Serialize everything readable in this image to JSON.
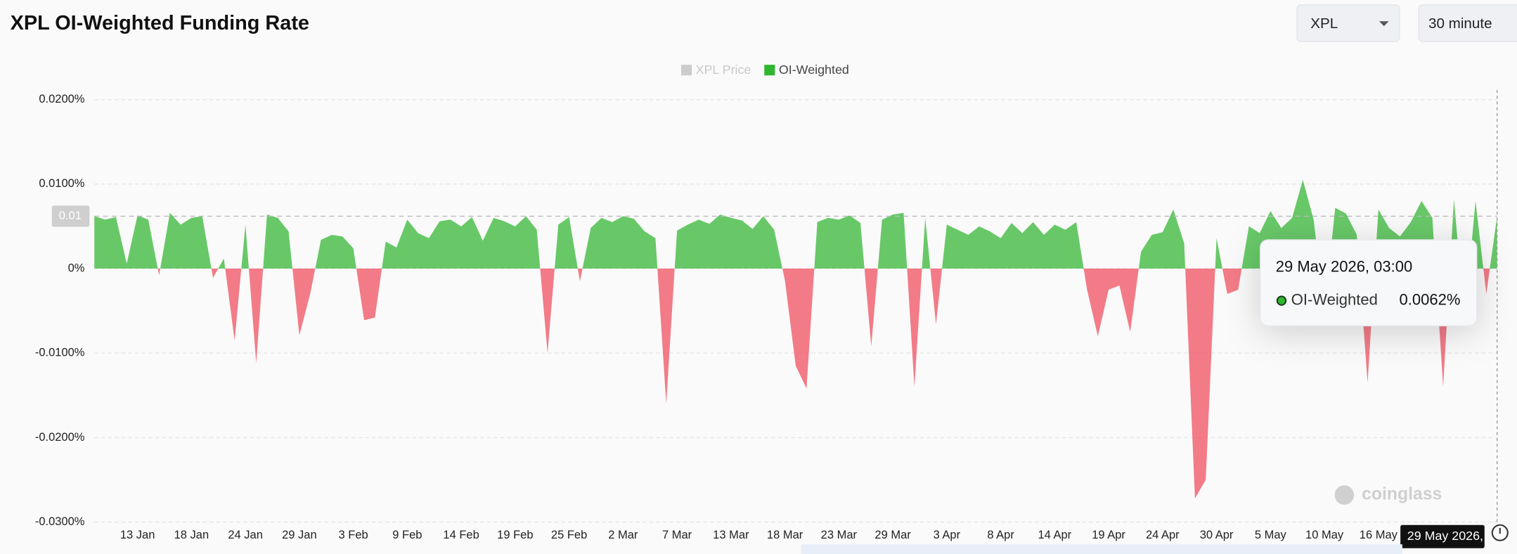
{
  "header": {
    "symbol_select": "XPL",
    "interval_select": "30 minute"
  },
  "watermark": "coinglass",
  "chart_data": {
    "type": "area",
    "title": "XPL OI-Weighted Funding Rate",
    "categories": [
      null,
      null,
      null,
      null,
      "13 Jan",
      null,
      null,
      null,
      null,
      "18 Jan",
      null,
      null,
      null,
      null,
      "24 Jan",
      null,
      null,
      null,
      null,
      "29 Jan",
      null,
      null,
      null,
      null,
      "3 Feb",
      null,
      null,
      null,
      null,
      "9 Feb",
      null,
      null,
      null,
      null,
      "14 Feb",
      null,
      null,
      null,
      null,
      "19 Feb",
      null,
      null,
      null,
      null,
      "25 Feb",
      null,
      null,
      null,
      null,
      "2 Mar",
      null,
      null,
      null,
      null,
      "7 Mar",
      null,
      null,
      null,
      null,
      "13 Mar",
      null,
      null,
      null,
      null,
      "18 Mar",
      null,
      null,
      null,
      null,
      "23 Mar",
      null,
      null,
      null,
      null,
      "29 Mar",
      null,
      null,
      null,
      null,
      "3 Apr",
      null,
      null,
      null,
      null,
      "8 Apr",
      null,
      null,
      null,
      null,
      "14 Apr",
      null,
      null,
      null,
      null,
      "19 Apr",
      null,
      null,
      null,
      null,
      "24 Apr",
      null,
      null,
      null,
      null,
      "30 Apr",
      null,
      null,
      null,
      null,
      "5 May",
      null,
      null,
      null,
      null,
      "10 May",
      null,
      null,
      null,
      null,
      "16 May",
      null,
      null,
      null,
      null,
      null,
      null,
      null,
      null,
      null,
      null,
      null
    ],
    "series": [
      {
        "name": "XPL Price",
        "color": "#cccccc",
        "hidden": true
      },
      {
        "name": "OI-Weighted",
        "color": "#2fb52f",
        "negative_color": "#ef4a5a",
        "values": [
          0.0062,
          0.0058,
          0.0061,
          0.0006,
          0.0063,
          0.0058,
          -0.0008,
          0.0066,
          0.0052,
          0.006,
          0.0062,
          -0.0011,
          0.0012,
          -0.0085,
          0.0052,
          -0.0112,
          0.0064,
          0.006,
          0.0044,
          -0.0079,
          -0.003,
          0.0034,
          0.004,
          0.0038,
          0.0024,
          -0.0061,
          -0.0058,
          0.0032,
          0.0025,
          0.0058,
          0.0042,
          0.0036,
          0.0056,
          0.0058,
          0.005,
          0.0061,
          0.0033,
          0.006,
          0.0056,
          0.005,
          0.0062,
          0.0046,
          -0.01,
          0.0052,
          0.0061,
          -0.0015,
          0.0048,
          0.006,
          0.0055,
          0.0062,
          0.0059,
          0.0044,
          0.0036,
          -0.016,
          0.0045,
          0.0052,
          0.0058,
          0.0053,
          0.0064,
          0.006,
          0.0057,
          0.0047,
          0.0062,
          0.0046,
          -0.0014,
          -0.0115,
          -0.0142,
          0.0055,
          0.006,
          0.0058,
          0.0063,
          0.0054,
          -0.0092,
          0.0058,
          0.0064,
          0.0066,
          -0.014,
          0.006,
          -0.0066,
          0.0052,
          0.0046,
          0.004,
          0.005,
          0.0044,
          0.0036,
          0.0054,
          0.0042,
          0.0055,
          0.004,
          0.0052,
          0.0046,
          0.0055,
          -0.0025,
          -0.008,
          -0.0025,
          -0.002,
          -0.0075,
          0.002,
          0.004,
          0.0043,
          0.007,
          0.003,
          -0.0272,
          -0.025,
          0.0036,
          -0.003,
          -0.0025,
          0.005,
          0.0042,
          0.0068,
          0.0048,
          0.006,
          0.0105,
          0.0058,
          -0.005,
          0.0072,
          0.0065,
          0.004,
          -0.0135,
          0.007,
          0.0048,
          0.0038,
          0.0055,
          0.008,
          0.006,
          -0.014,
          0.0082,
          -0.006,
          0.008,
          -0.003,
          0.0062
        ]
      }
    ],
    "ylim": [
      -0.03,
      0.02
    ],
    "yticks": [
      {
        "value": 0.02,
        "label": "0.0200%"
      },
      {
        "value": 0.01,
        "label": "0.0100%"
      },
      {
        "value": 0,
        "label": "0%"
      },
      {
        "value": -0.01,
        "label": "-0.0100%"
      },
      {
        "value": -0.02,
        "label": "-0.0200%"
      },
      {
        "value": -0.03,
        "label": "-0.0300%"
      }
    ],
    "grid": true,
    "crosshair": {
      "y": {
        "value": 0.0062,
        "label": "0.01"
      },
      "x_label": "29 May 2026,"
    },
    "tooltip": {
      "title": "29 May 2026, 03:00",
      "value": 0.0062,
      "value_label": "0.0062%"
    }
  }
}
